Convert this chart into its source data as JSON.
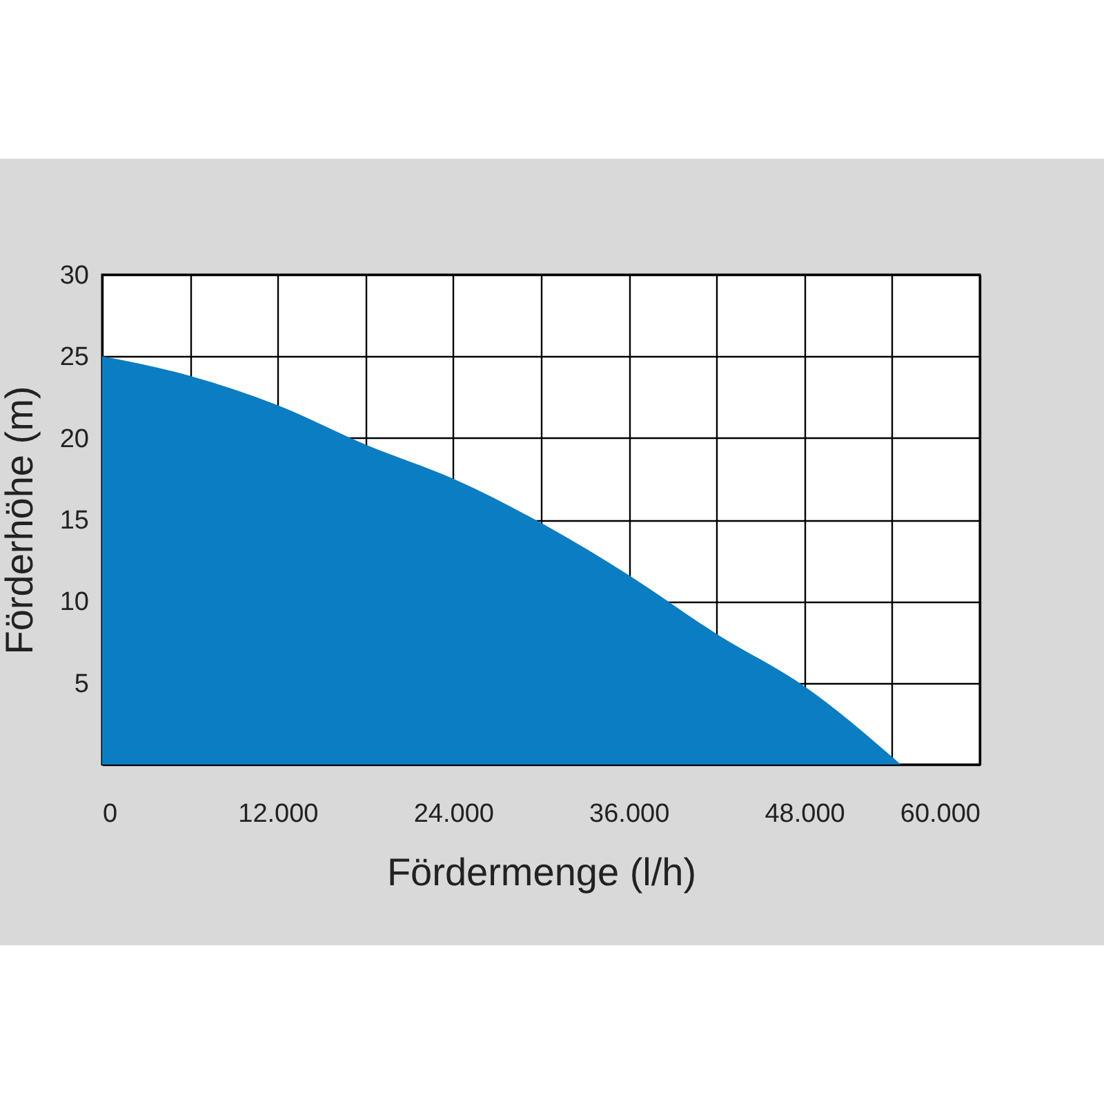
{
  "chart_data": {
    "type": "area",
    "xlabel": "Fördermenge (l/h)",
    "ylabel": "Förderhöhe (m)",
    "x": [
      0,
      6000,
      12000,
      18000,
      24000,
      30000,
      36000,
      42000,
      48000,
      54600
    ],
    "series": [
      {
        "color": "#0b7dc2",
        "values": [
          25,
          23.8,
          22,
          19.6,
          17.5,
          14.8,
          11.6,
          8,
          4.8,
          0
        ]
      }
    ],
    "xlim": [
      0,
      60000
    ],
    "ylim": [
      0,
      30
    ],
    "xticks": [
      0,
      {
        "value": 6000,
        "label": null
      },
      {
        "value": 12000,
        "label": "12.000"
      },
      {
        "value": 18000,
        "label": null
      },
      {
        "value": 24000,
        "label": "24.000"
      },
      {
        "value": 30000,
        "label": null
      },
      {
        "value": 36000,
        "label": "36.000"
      },
      {
        "value": 42000,
        "label": null
      },
      {
        "value": 48000,
        "label": "48.000"
      },
      {
        "value": 54000,
        "label": null
      },
      {
        "value": 60000,
        "label": "60.000"
      }
    ],
    "yticks": [
      {
        "value": 0,
        "label": null
      },
      5,
      10,
      15,
      20,
      25,
      30
    ],
    "grid": true
  }
}
